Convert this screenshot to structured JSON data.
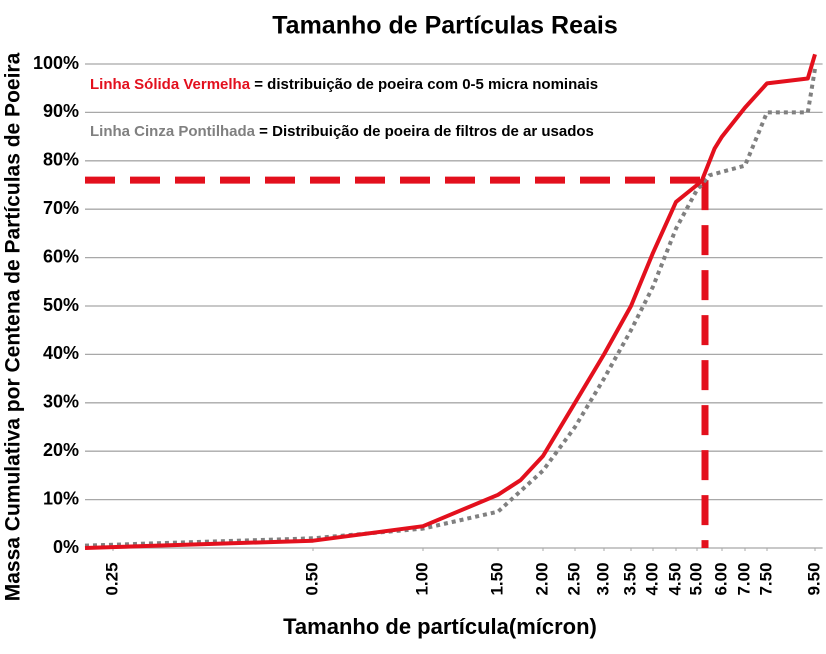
{
  "chart_data": {
    "type": "line",
    "title": "Tamanho de Partículas Reais",
    "x_label": "Tamanho de partícula(mícron)",
    "y_label": "Massa Cumulativa por Centena de Partículas de Poeira",
    "xlim": [
      0.215,
      9.65
    ],
    "ylim": [
      0,
      102
    ],
    "xticks": [
      {
        "value": 0.25,
        "label": "0.25"
      },
      {
        "value": 0.5,
        "label": "0.50"
      },
      {
        "value": 1,
        "label": "1.00"
      },
      {
        "value": 1.5,
        "label": "1.50"
      },
      {
        "value": 2,
        "label": "2.00"
      },
      {
        "value": 2.5,
        "label": "2.50"
      },
      {
        "value": 3,
        "label": "3.00"
      },
      {
        "value": 3.5,
        "label": "3.50"
      },
      {
        "value": 4,
        "label": "4.00"
      },
      {
        "value": 4.5,
        "label": "4.50"
      },
      {
        "value": 5,
        "label": "5.00"
      },
      {
        "value": 6,
        "label": "6.00"
      },
      {
        "value": 7,
        "label": "7.00"
      },
      {
        "value": 7.5,
        "label": "7.50"
      },
      {
        "value": 9.5,
        "label": "9.50"
      }
    ],
    "yticks": [
      {
        "value": 0,
        "label": "0%"
      },
      {
        "value": 10,
        "label": "10%"
      },
      {
        "value": 20,
        "label": "20%"
      },
      {
        "value": 30,
        "label": "30%"
      },
      {
        "value": 40,
        "label": "40%"
      },
      {
        "value": 50,
        "label": "50%"
      },
      {
        "value": 60,
        "label": "60%"
      },
      {
        "value": 70,
        "label": "70%"
      },
      {
        "value": 80,
        "label": "80%"
      },
      {
        "value": 90,
        "label": "90%"
      },
      {
        "value": 100,
        "label": "100%"
      }
    ],
    "grid": true,
    "series": [
      {
        "name": "Linha Sólida Vermelha",
        "description": " = distribuição de poeira com 0-5 micra nominais",
        "color": "#e3101d",
        "style": "solid",
        "x": [
          0.215,
          0.5,
          1.0,
          1.5,
          1.75,
          2.0,
          2.5,
          3.0,
          3.5,
          4.0,
          4.5,
          5.0,
          5.2,
          5.7,
          6.0,
          7.0,
          7.5,
          9.2,
          9.5
        ],
        "values": [
          0,
          1.5,
          4.5,
          11,
          14,
          19,
          30,
          40,
          50,
          61,
          71.5,
          75,
          76,
          82.5,
          85,
          91,
          96,
          97,
          102
        ]
      },
      {
        "name": "Linha Cinza Pontilhada",
        "description": " = Distribuição de poeira de filtros de ar usados",
        "color": "#808080",
        "style": "dotted",
        "x": [
          0.215,
          0.5,
          1.0,
          1.5,
          2.0,
          2.5,
          3.0,
          3.5,
          4.0,
          4.5,
          5.0,
          5.5,
          7.0,
          7.5,
          9.2,
          9.5
        ],
        "values": [
          0.5,
          2,
          4,
          7.5,
          16,
          25,
          35,
          45,
          54,
          66,
          74,
          77,
          79,
          90,
          90,
          99
        ]
      }
    ],
    "reference": {
      "x": 5.32,
      "y": 76,
      "color": "#e3101d"
    }
  }
}
